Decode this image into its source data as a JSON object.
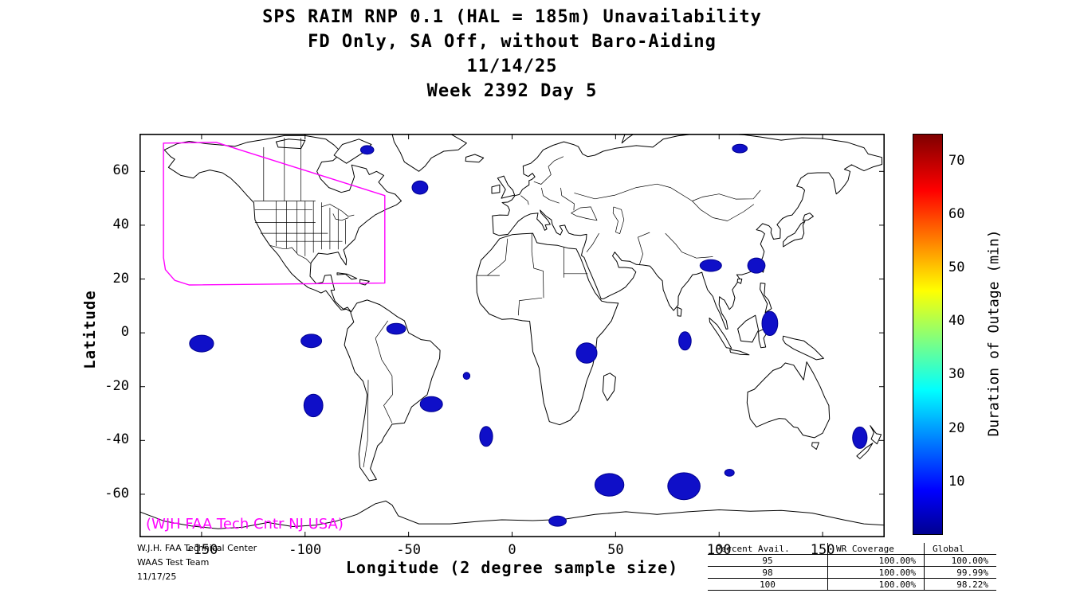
{
  "title": {
    "lines": [
      "SPS RAIM RNP 0.1 (HAL = 185m) Unavailability",
      "FD Only, SA Off, without Baro-Aiding",
      "11/14/25",
      "Week 2392 Day 5"
    ]
  },
  "chart_data": {
    "type": "map",
    "xlabel": "Longitude (2 degree sample size)",
    "ylabel": "Latitude",
    "xlim": [
      -180,
      180
    ],
    "ylim": [
      -76,
      74
    ],
    "xticks": [
      -150,
      -100,
      -50,
      0,
      50,
      100,
      150
    ],
    "yticks": [
      60,
      40,
      20,
      0,
      -20,
      -40,
      -60
    ],
    "annotation": {
      "text": "(WJH FAA Tech Cntr NJ USA)",
      "color": "#ff00ff"
    },
    "colorbar": {
      "label": "Duration of Outage (min)",
      "ticks": [
        10,
        20,
        30,
        40,
        50,
        60,
        70
      ],
      "min": 0,
      "max": 75,
      "colormap": "jet"
    },
    "outage_color": "#0f0fc8",
    "outage_regions_deg": [
      {
        "lon": -70,
        "lat": 68,
        "rx": 3.2,
        "ry": 1.6
      },
      {
        "lon": 110,
        "lat": 68.5,
        "rx": 3.6,
        "ry": 1.6
      },
      {
        "lon": -44.5,
        "lat": 54,
        "rx": 3.8,
        "ry": 2.5
      },
      {
        "lon": 96,
        "lat": 25,
        "rx": 5.2,
        "ry": 2.2
      },
      {
        "lon": 118,
        "lat": 25,
        "rx": 4.2,
        "ry": 2.8
      },
      {
        "lon": 124.5,
        "lat": 3.5,
        "rx": 3.8,
        "ry": 4.5
      },
      {
        "lon": 83.5,
        "lat": -3,
        "rx": 3.0,
        "ry": 3.4
      },
      {
        "lon": 36,
        "lat": -7.5,
        "rx": 5.0,
        "ry": 3.8
      },
      {
        "lon": -56,
        "lat": 1.5,
        "rx": 4.6,
        "ry": 2.0
      },
      {
        "lon": -97,
        "lat": -3,
        "rx": 5.0,
        "ry": 2.5
      },
      {
        "lon": -150,
        "lat": -4,
        "rx": 5.8,
        "ry": 3.1
      },
      {
        "lon": -22,
        "lat": -16,
        "rx": 1.6,
        "ry": 1.3
      },
      {
        "lon": -96,
        "lat": -27,
        "rx": 4.6,
        "ry": 4.2
      },
      {
        "lon": -39,
        "lat": -26.5,
        "rx": 5.4,
        "ry": 2.8
      },
      {
        "lon": -12.5,
        "lat": -38.5,
        "rx": 3.1,
        "ry": 3.7
      },
      {
        "lon": 168,
        "lat": -39,
        "rx": 3.5,
        "ry": 4.0
      },
      {
        "lon": 47,
        "lat": -56.5,
        "rx": 7.0,
        "ry": 4.2
      },
      {
        "lon": 83,
        "lat": -57,
        "rx": 7.8,
        "ry": 5.0
      },
      {
        "lon": 105,
        "lat": -52,
        "rx": 2.3,
        "ry": 1.3
      },
      {
        "lon": 22,
        "lat": -70,
        "rx": 4.2,
        "ry": 1.9
      }
    ],
    "waas_boundary": {
      "color": "#ff00ff",
      "points": [
        [
          -168.4,
          70.5
        ],
        [
          -143,
          70.8
        ],
        [
          -61.5,
          51
        ],
        [
          -61.5,
          18.5
        ],
        [
          -156,
          17.8
        ],
        [
          -163,
          19.5
        ],
        [
          -167.5,
          23.5
        ],
        [
          -168.4,
          28
        ],
        [
          -168.4,
          70.5
        ]
      ]
    }
  },
  "footer": {
    "credit_lines": [
      "W.J.H. FAA Technical Center",
      "WAAS Test Team",
      "11/17/25"
    ],
    "table": {
      "col_headers": [
        "Percent Avail.",
        "WR Coverage",
        "Global"
      ],
      "rows": [
        [
          "95",
          "100.00%",
          "100.00%"
        ],
        [
          "98",
          "100.00%",
          "99.99%"
        ],
        [
          "100",
          "100.00%",
          "98.22%"
        ]
      ]
    }
  }
}
